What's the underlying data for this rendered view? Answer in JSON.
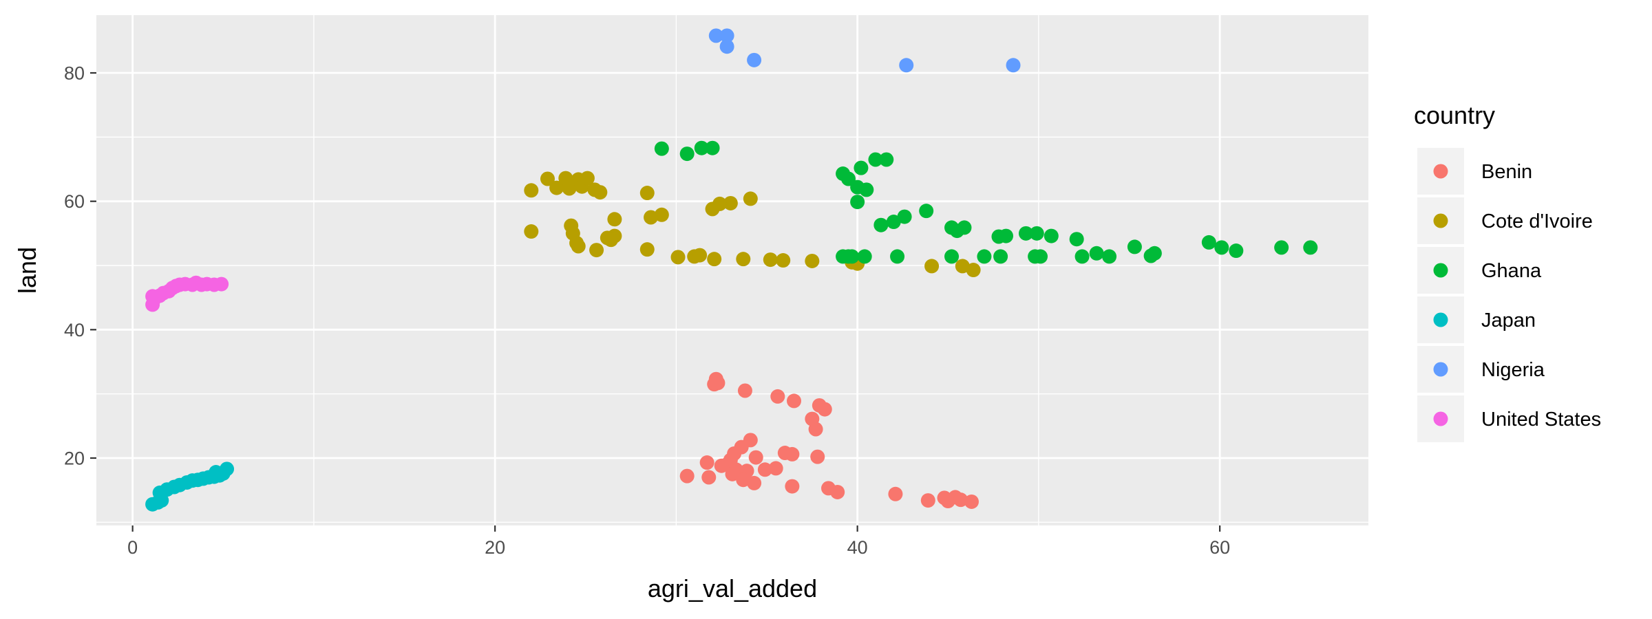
{
  "chart_data": {
    "type": "scatter",
    "xlabel": "agri_val_added",
    "ylabel": "land",
    "xlim": [
      -2.0,
      68.2
    ],
    "ylim": [
      9.5,
      89.0
    ],
    "x_ticks": [
      0,
      20,
      40,
      60
    ],
    "y_ticks": [
      20,
      40,
      60,
      80
    ],
    "grid": true,
    "legend_title": "country",
    "legend_position": "right",
    "series": [
      {
        "name": "Benin",
        "color": "#F8766D",
        "points": [
          [
            32.2,
            32.3
          ],
          [
            32.3,
            31.7
          ],
          [
            32.1,
            31.5
          ],
          [
            33.8,
            30.5
          ],
          [
            35.6,
            29.6
          ],
          [
            36.5,
            28.9
          ],
          [
            37.9,
            28.2
          ],
          [
            38.2,
            27.6
          ],
          [
            37.5,
            26.1
          ],
          [
            37.7,
            24.5
          ],
          [
            34.1,
            22.8
          ],
          [
            33.6,
            21.7
          ],
          [
            33.2,
            20.7
          ],
          [
            34.4,
            20.1
          ],
          [
            33.0,
            19.7
          ],
          [
            31.7,
            19.3
          ],
          [
            32.8,
            19.0
          ],
          [
            36.0,
            20.8
          ],
          [
            36.4,
            20.6
          ],
          [
            37.8,
            20.2
          ],
          [
            32.5,
            18.8
          ],
          [
            33.3,
            18.2
          ],
          [
            33.9,
            18.0
          ],
          [
            34.9,
            18.2
          ],
          [
            35.5,
            18.4
          ],
          [
            33.1,
            17.5
          ],
          [
            31.8,
            17.0
          ],
          [
            30.6,
            17.2
          ],
          [
            33.7,
            16.6
          ],
          [
            34.3,
            16.1
          ],
          [
            36.4,
            15.6
          ],
          [
            38.4,
            15.3
          ],
          [
            38.9,
            14.7
          ],
          [
            42.1,
            14.4
          ],
          [
            43.9,
            13.4
          ],
          [
            44.8,
            13.8
          ],
          [
            45.0,
            13.3
          ],
          [
            45.4,
            13.9
          ],
          [
            45.7,
            13.5
          ],
          [
            46.3,
            13.2
          ]
        ]
      },
      {
        "name": "Cote d'Ivoire",
        "color": "#B79F00",
        "points": [
          [
            22.0,
            61.7
          ],
          [
            22.9,
            63.5
          ],
          [
            23.4,
            62.1
          ],
          [
            23.9,
            63.6
          ],
          [
            24.1,
            62.0
          ],
          [
            24.6,
            63.4
          ],
          [
            24.8,
            62.3
          ],
          [
            25.1,
            63.6
          ],
          [
            25.5,
            61.8
          ],
          [
            25.8,
            61.4
          ],
          [
            28.4,
            61.3
          ],
          [
            34.1,
            60.4
          ],
          [
            33.0,
            59.7
          ],
          [
            32.4,
            59.6
          ],
          [
            32.0,
            58.8
          ],
          [
            29.2,
            57.9
          ],
          [
            28.6,
            57.5
          ],
          [
            26.6,
            57.2
          ],
          [
            24.2,
            56.2
          ],
          [
            24.3,
            55.0
          ],
          [
            22.0,
            55.3
          ],
          [
            26.6,
            54.6
          ],
          [
            26.2,
            54.3
          ],
          [
            26.4,
            54.0
          ],
          [
            24.5,
            53.5
          ],
          [
            24.6,
            53.0
          ],
          [
            25.6,
            52.4
          ],
          [
            28.4,
            52.5
          ],
          [
            30.1,
            51.3
          ],
          [
            31.0,
            51.4
          ],
          [
            31.3,
            51.6
          ],
          [
            32.1,
            51.0
          ],
          [
            33.7,
            51.0
          ],
          [
            35.2,
            50.9
          ],
          [
            35.9,
            50.8
          ],
          [
            37.5,
            50.7
          ],
          [
            39.7,
            50.5
          ],
          [
            40.0,
            50.3
          ],
          [
            44.1,
            49.9
          ],
          [
            45.8,
            49.9
          ],
          [
            46.4,
            49.3
          ]
        ]
      },
      {
        "name": "Ghana",
        "color": "#00BA38",
        "points": [
          [
            29.2,
            68.2
          ],
          [
            31.4,
            68.3
          ],
          [
            32.0,
            68.3
          ],
          [
            30.6,
            67.4
          ],
          [
            41.0,
            66.5
          ],
          [
            41.6,
            66.5
          ],
          [
            40.2,
            65.2
          ],
          [
            39.2,
            64.3
          ],
          [
            39.5,
            63.5
          ],
          [
            40.0,
            62.2
          ],
          [
            40.5,
            61.8
          ],
          [
            40.0,
            59.9
          ],
          [
            43.8,
            58.5
          ],
          [
            42.6,
            57.6
          ],
          [
            42.0,
            56.8
          ],
          [
            41.3,
            56.3
          ],
          [
            45.2,
            55.9
          ],
          [
            45.5,
            55.4
          ],
          [
            45.9,
            55.9
          ],
          [
            47.8,
            54.5
          ],
          [
            48.2,
            54.6
          ],
          [
            49.3,
            55.0
          ],
          [
            49.9,
            55.0
          ],
          [
            50.7,
            54.6
          ],
          [
            52.1,
            54.1
          ],
          [
            55.3,
            52.9
          ],
          [
            56.4,
            51.9
          ],
          [
            56.2,
            51.5
          ],
          [
            53.2,
            51.9
          ],
          [
            53.9,
            51.4
          ],
          [
            52.4,
            51.4
          ],
          [
            50.1,
            51.4
          ],
          [
            49.8,
            51.4
          ],
          [
            47.9,
            51.4
          ],
          [
            47.0,
            51.4
          ],
          [
            45.2,
            51.4
          ],
          [
            42.2,
            51.4
          ],
          [
            40.4,
            51.4
          ],
          [
            39.7,
            51.4
          ],
          [
            39.5,
            51.4
          ],
          [
            39.2,
            51.4
          ],
          [
            59.4,
            53.6
          ],
          [
            60.1,
            52.8
          ],
          [
            60.9,
            52.3
          ],
          [
            63.4,
            52.8
          ],
          [
            65.0,
            52.8
          ]
        ]
      },
      {
        "name": "Japan",
        "color": "#00BFC4",
        "points": [
          [
            1.1,
            12.8
          ],
          [
            1.4,
            13.1
          ],
          [
            1.6,
            13.4
          ],
          [
            1.5,
            14.6
          ],
          [
            1.9,
            15.1
          ],
          [
            2.3,
            15.5
          ],
          [
            2.6,
            15.8
          ],
          [
            3.0,
            16.2
          ],
          [
            3.3,
            16.5
          ],
          [
            3.6,
            16.6
          ],
          [
            3.9,
            16.8
          ],
          [
            4.2,
            17.0
          ],
          [
            4.5,
            17.1
          ],
          [
            4.6,
            17.8
          ],
          [
            4.8,
            17.3
          ],
          [
            5.0,
            17.6
          ],
          [
            5.2,
            18.3
          ]
        ]
      },
      {
        "name": "Nigeria",
        "color": "#619CFF",
        "points": [
          [
            32.2,
            85.8
          ],
          [
            32.8,
            85.8
          ],
          [
            32.8,
            84.1
          ],
          [
            34.3,
            82.0
          ],
          [
            42.7,
            81.2
          ],
          [
            48.6,
            81.2
          ]
        ]
      },
      {
        "name": "United States",
        "color": "#F564E3",
        "points": [
          [
            1.1,
            43.9
          ],
          [
            1.2,
            44.8
          ],
          [
            1.1,
            45.2
          ],
          [
            1.5,
            45.3
          ],
          [
            1.7,
            45.7
          ],
          [
            2.0,
            46.0
          ],
          [
            2.2,
            46.5
          ],
          [
            2.4,
            46.8
          ],
          [
            2.6,
            47.0
          ],
          [
            2.9,
            47.1
          ],
          [
            3.3,
            47.0
          ],
          [
            3.5,
            47.3
          ],
          [
            3.8,
            47.0
          ],
          [
            4.1,
            47.1
          ],
          [
            4.5,
            47.0
          ],
          [
            4.9,
            47.1
          ]
        ]
      }
    ]
  }
}
